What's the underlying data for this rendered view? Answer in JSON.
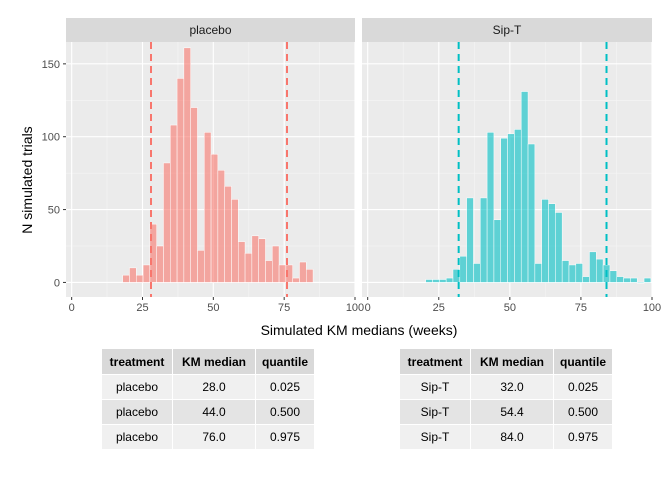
{
  "chart_data": {
    "type": "bar",
    "xlabel": "Simulated KM medians (weeks)",
    "ylabel": "N simulated trials",
    "xlim": [
      -2,
      100
    ],
    "ylim": [
      -10,
      165
    ],
    "x_ticks": [
      "0",
      "25",
      "50",
      "75",
      "100"
    ],
    "y_ticks": [
      "0",
      "50",
      "100",
      "150"
    ],
    "grid": true,
    "bin_width": 2.4,
    "panels": [
      {
        "strip": "placebo",
        "color": "#F8766D",
        "vlines": [
          28.0,
          76.0
        ],
        "bins": [
          {
            "x": 19.2,
            "y": 5
          },
          {
            "x": 21.6,
            "y": 10
          },
          {
            "x": 24.0,
            "y": 5
          },
          {
            "x": 26.4,
            "y": 12
          },
          {
            "x": 28.8,
            "y": 40
          },
          {
            "x": 31.2,
            "y": 25
          },
          {
            "x": 33.6,
            "y": 82
          },
          {
            "x": 36.0,
            "y": 108
          },
          {
            "x": 38.4,
            "y": 140
          },
          {
            "x": 40.8,
            "y": 161
          },
          {
            "x": 43.2,
            "y": 120
          },
          {
            "x": 45.6,
            "y": 22
          },
          {
            "x": 48.0,
            "y": 103
          },
          {
            "x": 50.4,
            "y": 88
          },
          {
            "x": 52.8,
            "y": 77
          },
          {
            "x": 55.2,
            "y": 66
          },
          {
            "x": 57.6,
            "y": 57
          },
          {
            "x": 60.0,
            "y": 28
          },
          {
            "x": 62.4,
            "y": 20
          },
          {
            "x": 64.8,
            "y": 32
          },
          {
            "x": 67.2,
            "y": 30
          },
          {
            "x": 69.6,
            "y": 15
          },
          {
            "x": 72.0,
            "y": 25
          },
          {
            "x": 74.4,
            "y": 12
          },
          {
            "x": 76.8,
            "y": 12
          },
          {
            "x": 79.2,
            "y": 3
          },
          {
            "x": 81.6,
            "y": 14
          },
          {
            "x": 84.0,
            "y": 9
          }
        ]
      },
      {
        "strip": "Sip-T",
        "color": "#00BFC4",
        "vlines": [
          32.0,
          84.0
        ],
        "bins": [
          {
            "x": 21.6,
            "y": 2
          },
          {
            "x": 24.0,
            "y": 2
          },
          {
            "x": 26.4,
            "y": 2
          },
          {
            "x": 28.8,
            "y": 3
          },
          {
            "x": 31.2,
            "y": 9
          },
          {
            "x": 33.6,
            "y": 18
          },
          {
            "x": 36.0,
            "y": 58
          },
          {
            "x": 38.4,
            "y": 13
          },
          {
            "x": 40.8,
            "y": 58
          },
          {
            "x": 43.2,
            "y": 103
          },
          {
            "x": 45.6,
            "y": 43
          },
          {
            "x": 48.0,
            "y": 99
          },
          {
            "x": 50.4,
            "y": 102
          },
          {
            "x": 52.8,
            "y": 105
          },
          {
            "x": 55.2,
            "y": 131
          },
          {
            "x": 57.6,
            "y": 95
          },
          {
            "x": 60.0,
            "y": 13
          },
          {
            "x": 62.4,
            "y": 57
          },
          {
            "x": 64.8,
            "y": 54
          },
          {
            "x": 67.2,
            "y": 48
          },
          {
            "x": 69.6,
            "y": 15
          },
          {
            "x": 72.0,
            "y": 12
          },
          {
            "x": 74.4,
            "y": 13
          },
          {
            "x": 76.8,
            "y": 4
          },
          {
            "x": 79.2,
            "y": 21
          },
          {
            "x": 81.6,
            "y": 16
          },
          {
            "x": 84.0,
            "y": 12
          },
          {
            "x": 86.4,
            "y": 8
          },
          {
            "x": 88.8,
            "y": 4
          },
          {
            "x": 91.2,
            "y": 3
          },
          {
            "x": 93.6,
            "y": 3
          },
          {
            "x": 96.0,
            "y": 0
          },
          {
            "x": 98.4,
            "y": 3
          }
        ]
      }
    ]
  },
  "tables": [
    {
      "headers": [
        "treatment",
        "KM median",
        "quantile"
      ],
      "rows": [
        [
          "placebo",
          "28.0",
          "0.025"
        ],
        [
          "placebo",
          "44.0",
          "0.500"
        ],
        [
          "placebo",
          "76.0",
          "0.975"
        ]
      ]
    },
    {
      "headers": [
        "treatment",
        "KM median",
        "quantile"
      ],
      "rows": [
        [
          "Sip-T",
          "32.0",
          "0.025"
        ],
        [
          "Sip-T",
          "54.4",
          "0.500"
        ],
        [
          "Sip-T",
          "84.0",
          "0.975"
        ]
      ]
    }
  ]
}
